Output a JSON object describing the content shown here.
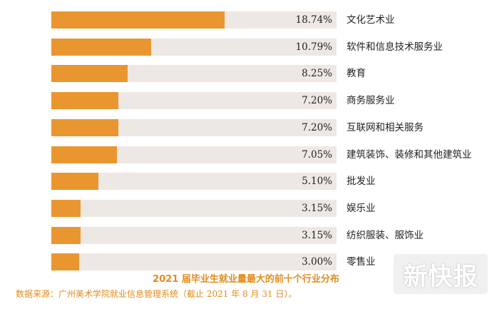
{
  "chart_data": {
    "type": "bar",
    "orientation": "horizontal",
    "title": "2021 届毕业生就业量最大的前十个行业分布",
    "categories": [
      "文化艺术业",
      "软件和信息技术服务业",
      "教育",
      "商务服务业",
      "互联网和相关服务",
      "建筑装饰、装修和其他建筑业",
      "批发业",
      "娱乐业",
      "纺织服装、服饰业",
      "零售业"
    ],
    "values": [
      18.74,
      10.79,
      8.25,
      7.2,
      7.2,
      7.05,
      5.1,
      3.15,
      3.15,
      3.0
    ],
    "value_labels": [
      "18.74%",
      "10.79%",
      "8.25%",
      "7.20%",
      "7.20%",
      "7.05%",
      "5.10%",
      "3.15%",
      "3.15%",
      "3.00%"
    ],
    "unit": "%",
    "xlim": [
      0,
      30.8
    ],
    "grid": false,
    "colors": {
      "bar": "#ea9630",
      "track": "#ede8e4",
      "title": "#e38b1c"
    }
  },
  "source": "数据来源：广州美术学院就业信息管理系统（截止 2021 年 8 月 31 日）。",
  "watermark": "新快报"
}
